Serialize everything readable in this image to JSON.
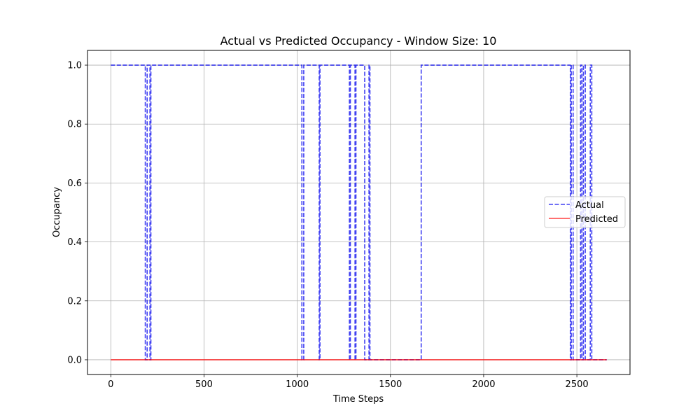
{
  "chart_data": {
    "type": "line",
    "title": "Actual vs Predicted Occupancy - Window Size: 10",
    "xlabel": "Time Steps",
    "ylabel": "Occupancy",
    "xlim": [
      -125,
      2785
    ],
    "ylim": [
      -0.05,
      1.05
    ],
    "xticks": [
      0,
      500,
      1000,
      1500,
      2000,
      2500
    ],
    "yticks": [
      0.0,
      0.2,
      0.4,
      0.6,
      0.8,
      1.0
    ],
    "xtick_labels": [
      "0",
      "500",
      "1000",
      "1500",
      "2000",
      "2500"
    ],
    "ytick_labels": [
      "0.0",
      "0.2",
      "0.4",
      "0.6",
      "0.8",
      "1.0"
    ],
    "grid": true,
    "legend_position": "center-right",
    "series": [
      {
        "name": "Actual",
        "color": "#0000ee",
        "style": "dashed",
        "x": [
          0,
          185,
          185,
          195,
          195,
          210,
          210,
          215,
          215,
          1025,
          1025,
          1035,
          1035,
          1118,
          1118,
          1122,
          1122,
          1280,
          1280,
          1285,
          1285,
          1310,
          1310,
          1315,
          1315,
          1362,
          1362,
          1385,
          1385,
          1390,
          1390,
          1665,
          1665,
          2465,
          2465,
          2470,
          2470,
          2480,
          2480,
          2520,
          2520,
          2527,
          2527,
          2535,
          2535,
          2545,
          2545,
          2572,
          2572,
          2580,
          2580,
          2660
        ],
        "y": [
          1,
          1,
          0,
          0,
          1,
          1,
          0,
          0,
          1,
          1,
          0,
          0,
          1,
          1,
          0,
          0,
          1,
          1,
          0,
          0,
          1,
          1,
          0,
          0,
          1,
          1,
          0,
          0,
          1,
          1,
          0,
          0,
          1,
          1,
          0,
          0,
          1,
          1,
          0,
          0,
          1,
          1,
          0,
          0,
          1,
          1,
          0,
          0,
          1,
          1,
          0,
          0
        ]
      },
      {
        "name": "Predicted",
        "color": "#ff0000",
        "style": "solid",
        "x": [
          0,
          2660
        ],
        "y": [
          0,
          0
        ]
      }
    ]
  }
}
